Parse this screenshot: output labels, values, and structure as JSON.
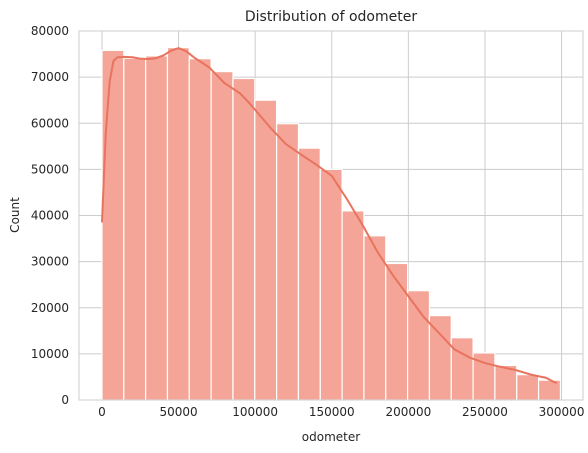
{
  "chart_data": {
    "type": "histogram",
    "title": "Distribution of odometer",
    "xlabel": "odometer",
    "ylabel": "Count",
    "xlim": [
      -15000,
      314000
    ],
    "ylim": [
      0,
      80000
    ],
    "xticks": [
      0,
      50000,
      100000,
      150000,
      200000,
      250000,
      300000
    ],
    "xtick_labels": [
      "0",
      "50000",
      "100000",
      "150000",
      "200000",
      "250000",
      "300000"
    ],
    "yticks": [
      0,
      10000,
      20000,
      30000,
      40000,
      50000,
      60000,
      70000,
      80000
    ],
    "ytick_labels": [
      "0",
      "10000",
      "20000",
      "30000",
      "40000",
      "50000",
      "60000",
      "70000",
      "80000"
    ],
    "grid": true,
    "bar_color": "#f4a597",
    "kde_color": "#e8735f",
    "bins": [
      {
        "x0": 0,
        "x1": 14250,
        "count": 75800
      },
      {
        "x0": 14250,
        "x1": 28500,
        "count": 74100
      },
      {
        "x0": 28500,
        "x1": 42750,
        "count": 74600
      },
      {
        "x0": 42750,
        "x1": 57000,
        "count": 76400
      },
      {
        "x0": 57000,
        "x1": 71250,
        "count": 74000
      },
      {
        "x0": 71250,
        "x1": 85500,
        "count": 71200
      },
      {
        "x0": 85500,
        "x1": 99750,
        "count": 69700
      },
      {
        "x0": 99750,
        "x1": 114000,
        "count": 65000
      },
      {
        "x0": 114000,
        "x1": 128250,
        "count": 59900
      },
      {
        "x0": 128250,
        "x1": 142500,
        "count": 54600
      },
      {
        "x0": 142500,
        "x1": 156750,
        "count": 50000
      },
      {
        "x0": 156750,
        "x1": 171000,
        "count": 41000
      },
      {
        "x0": 171000,
        "x1": 185250,
        "count": 35600
      },
      {
        "x0": 185250,
        "x1": 199500,
        "count": 29600
      },
      {
        "x0": 199500,
        "x1": 213750,
        "count": 23700
      },
      {
        "x0": 213750,
        "x1": 228000,
        "count": 18300
      },
      {
        "x0": 228000,
        "x1": 242250,
        "count": 13500
      },
      {
        "x0": 242250,
        "x1": 256500,
        "count": 10200
      },
      {
        "x0": 256500,
        "x1": 270750,
        "count": 7500
      },
      {
        "x0": 270750,
        "x1": 285000,
        "count": 5500
      },
      {
        "x0": 285000,
        "x1": 299250,
        "count": 4300
      }
    ],
    "kde": {
      "x": [
        0,
        2500,
        5000,
        7500,
        10000,
        15000,
        20000,
        25000,
        30000,
        35000,
        40000,
        45000,
        50000,
        55000,
        60000,
        65000,
        70000,
        75000,
        80000,
        85000,
        90000,
        95000,
        100000,
        110000,
        120000,
        130000,
        140000,
        150000,
        160000,
        170000,
        180000,
        190000,
        200000,
        210000,
        220000,
        230000,
        240000,
        250000,
        260000,
        270000,
        280000,
        290000,
        295000,
        297000
      ],
      "y": [
        38500,
        58000,
        69000,
        73500,
        74300,
        74400,
        74300,
        74000,
        73900,
        74100,
        74700,
        75700,
        76300,
        75600,
        74300,
        73200,
        72100,
        70400,
        68700,
        67600,
        66500,
        64800,
        62900,
        59000,
        55500,
        53200,
        51000,
        48600,
        43500,
        38000,
        32000,
        27000,
        22500,
        18000,
        14500,
        11000,
        9200,
        8000,
        7200,
        6500,
        5500,
        4800,
        3900,
        3700
      ]
    }
  }
}
